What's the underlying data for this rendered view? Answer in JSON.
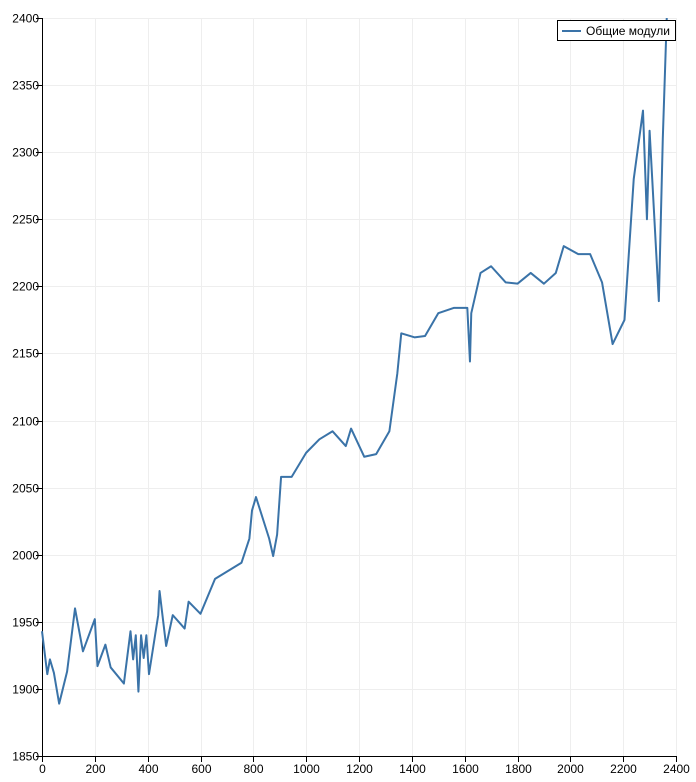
{
  "chart_data": {
    "type": "line",
    "title": "",
    "xlabel": "",
    "ylabel": "",
    "xlim": [
      0,
      2400
    ],
    "ylim": [
      1850,
      2400
    ],
    "x_ticks": [
      0,
      200,
      400,
      600,
      800,
      1000,
      1200,
      1400,
      1600,
      1800,
      2000,
      2200,
      2400
    ],
    "y_ticks": [
      1850,
      1900,
      1950,
      2000,
      2050,
      2100,
      2150,
      2200,
      2250,
      2300,
      2350,
      2400
    ],
    "grid": true,
    "legend_position": "top-right",
    "series": [
      {
        "name": "Общие модули",
        "color": "#3a73a8",
        "points": [
          [
            0,
            1943
          ],
          [
            20,
            1911
          ],
          [
            30,
            1922
          ],
          [
            45,
            1912
          ],
          [
            65,
            1889
          ],
          [
            95,
            1913
          ],
          [
            125,
            1960
          ],
          [
            155,
            1928
          ],
          [
            200,
            1952
          ],
          [
            210,
            1917
          ],
          [
            240,
            1933
          ],
          [
            260,
            1916
          ],
          [
            310,
            1904
          ],
          [
            335,
            1943
          ],
          [
            345,
            1922
          ],
          [
            355,
            1940
          ],
          [
            365,
            1898
          ],
          [
            375,
            1940
          ],
          [
            385,
            1923
          ],
          [
            395,
            1940
          ],
          [
            405,
            1911
          ],
          [
            440,
            1955
          ],
          [
            445,
            1973
          ],
          [
            470,
            1932
          ],
          [
            495,
            1955
          ],
          [
            540,
            1945
          ],
          [
            555,
            1965
          ],
          [
            600,
            1956
          ],
          [
            655,
            1982
          ],
          [
            755,
            1994
          ],
          [
            785,
            2012
          ],
          [
            795,
            2033
          ],
          [
            810,
            2043
          ],
          [
            860,
            2012
          ],
          [
            875,
            1999
          ],
          [
            890,
            2015
          ],
          [
            905,
            2058
          ],
          [
            945,
            2058
          ],
          [
            1000,
            2076
          ],
          [
            1050,
            2086
          ],
          [
            1100,
            2092
          ],
          [
            1150,
            2081
          ],
          [
            1170,
            2094
          ],
          [
            1220,
            2073
          ],
          [
            1265,
            2075
          ],
          [
            1315,
            2092
          ],
          [
            1345,
            2135
          ],
          [
            1360,
            2165
          ],
          [
            1410,
            2162
          ],
          [
            1450,
            2163
          ],
          [
            1500,
            2180
          ],
          [
            1560,
            2184
          ],
          [
            1610,
            2184
          ],
          [
            1620,
            2144
          ],
          [
            1625,
            2180
          ],
          [
            1660,
            2210
          ],
          [
            1700,
            2215
          ],
          [
            1755,
            2203
          ],
          [
            1800,
            2202
          ],
          [
            1850,
            2210
          ],
          [
            1900,
            2202
          ],
          [
            1945,
            2210
          ],
          [
            1975,
            2230
          ],
          [
            2030,
            2224
          ],
          [
            2075,
            2224
          ],
          [
            2120,
            2203
          ],
          [
            2160,
            2157
          ],
          [
            2205,
            2175
          ],
          [
            2240,
            2280
          ],
          [
            2275,
            2331
          ],
          [
            2290,
            2250
          ],
          [
            2300,
            2316
          ],
          [
            2310,
            2280
          ],
          [
            2335,
            2189
          ],
          [
            2350,
            2310
          ],
          [
            2365,
            2400
          ]
        ]
      }
    ]
  }
}
